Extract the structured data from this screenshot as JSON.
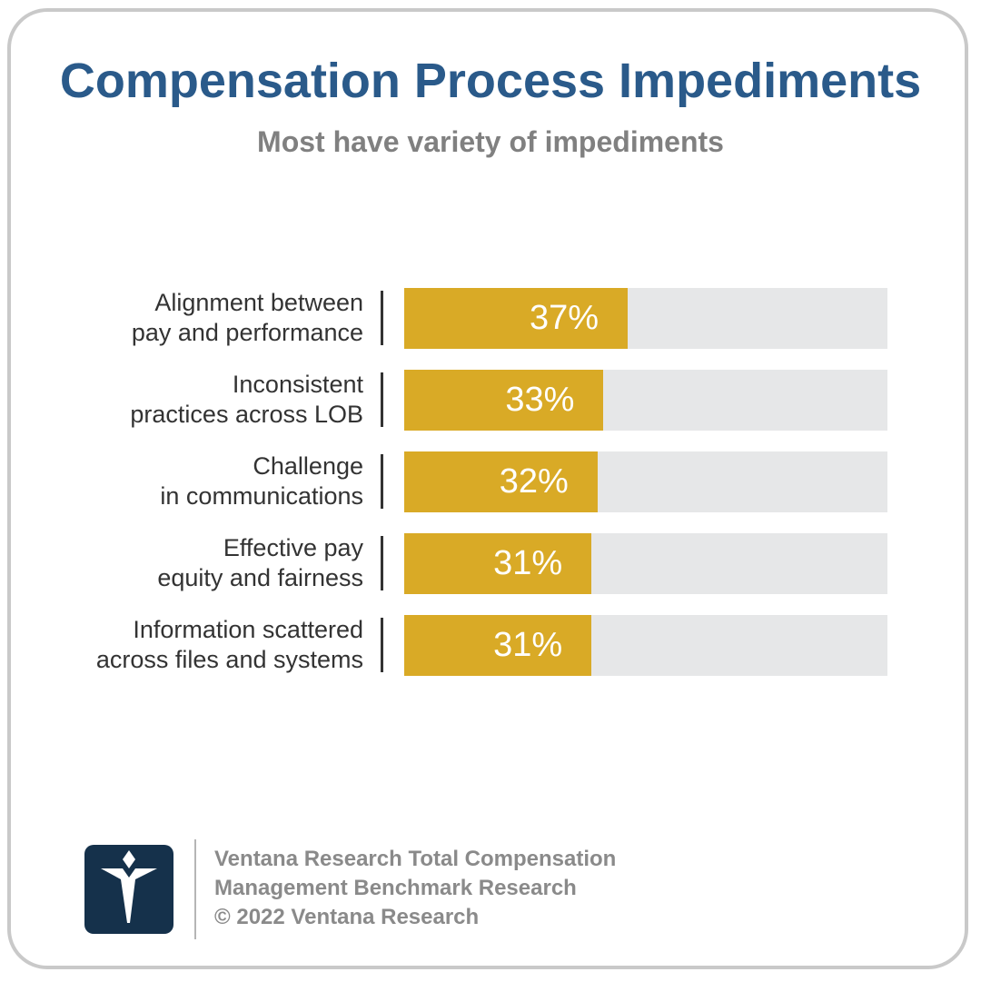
{
  "header": {
    "title": "Compensation Process Impediments",
    "subtitle": "Most have variety of impediments"
  },
  "chart_data": {
    "type": "bar",
    "orientation": "horizontal",
    "title": "Compensation Process Impediments",
    "subtitle": "Most have variety of impediments",
    "categories": [
      [
        "Alignment between",
        "pay and performance"
      ],
      [
        "Inconsistent",
        "practices across LOB"
      ],
      [
        "Challenge",
        "in communications"
      ],
      [
        "Effective pay",
        "equity and fairness"
      ],
      [
        "Information scattered",
        "across files and systems"
      ]
    ],
    "values": [
      37,
      33,
      32,
      31,
      31
    ],
    "value_labels": [
      "37%",
      "33%",
      "32%",
      "31%",
      "31%"
    ],
    "xlim": [
      0,
      80
    ],
    "grid": false,
    "legend": "none",
    "colors": {
      "bar": "#d9aa26",
      "track": "#e6e7e8",
      "label": "#333333",
      "value_label": "#ffffff"
    }
  },
  "footer": {
    "logo_icon": "ventana-v-logo-icon",
    "lines": [
      "Ventana Research Total Compensation",
      "Management Benchmark Research",
      "© 2022 Ventana Research"
    ]
  },
  "colors": {
    "title": "#2a5a8a",
    "subtitle": "#808080",
    "frame": "#c9c9c9",
    "logo_bg": "#15314b",
    "footer_text": "#8a8a8a"
  }
}
